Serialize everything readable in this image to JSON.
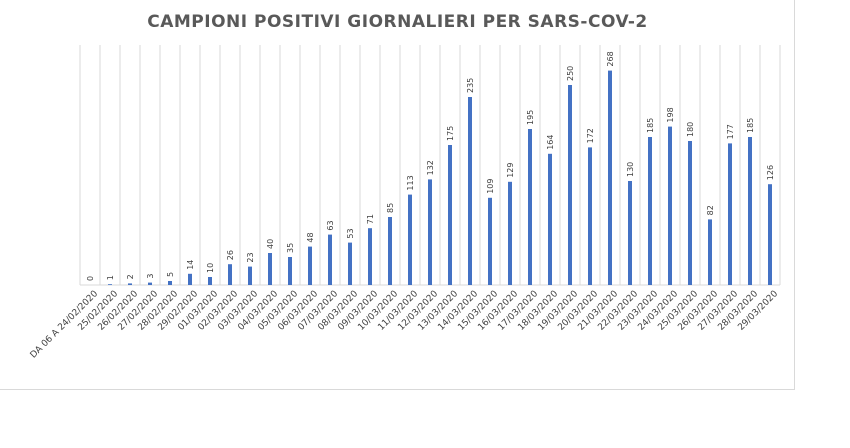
{
  "chart_data": {
    "type": "bar",
    "title": "CAMPIONI POSITIVI GIORNALIERI PER SARS-COV-2",
    "categories": [
      "DA 06 A 24/02/2020",
      "25/02/2020",
      "26/02/2020",
      "27/02/2020",
      "28/02/2020",
      "29/02/2020",
      "01/03/2020",
      "02/03/2020",
      "03/03/2020",
      "04/03/2020",
      "05/03/2020",
      "06/03/2020",
      "07/03/2020",
      "08/03/2020",
      "09/03/2020",
      "10/03/2020",
      "11/03/2020",
      "12/03/2020",
      "13/03/2020",
      "14/03/2020",
      "15/03/2020",
      "16/03/2020",
      "17/03/2020",
      "18/03/2020",
      "19/03/2020",
      "20/03/2020",
      "21/03/2020",
      "22/03/2020",
      "23/03/2020",
      "24/03/2020",
      "25/03/2020",
      "26/03/2020",
      "27/03/2020",
      "28/03/2020",
      "29/03/2020"
    ],
    "values": [
      0,
      1,
      2,
      3,
      5,
      14,
      10,
      26,
      23,
      40,
      35,
      48,
      63,
      53,
      71,
      85,
      113,
      132,
      175,
      235,
      109,
      129,
      195,
      164,
      250,
      172,
      268,
      130,
      185,
      198,
      180,
      82,
      177,
      185,
      126
    ],
    "ylim": [
      0,
      300
    ],
    "grid": "vertical",
    "legend": "none",
    "color": "#4472c4"
  }
}
